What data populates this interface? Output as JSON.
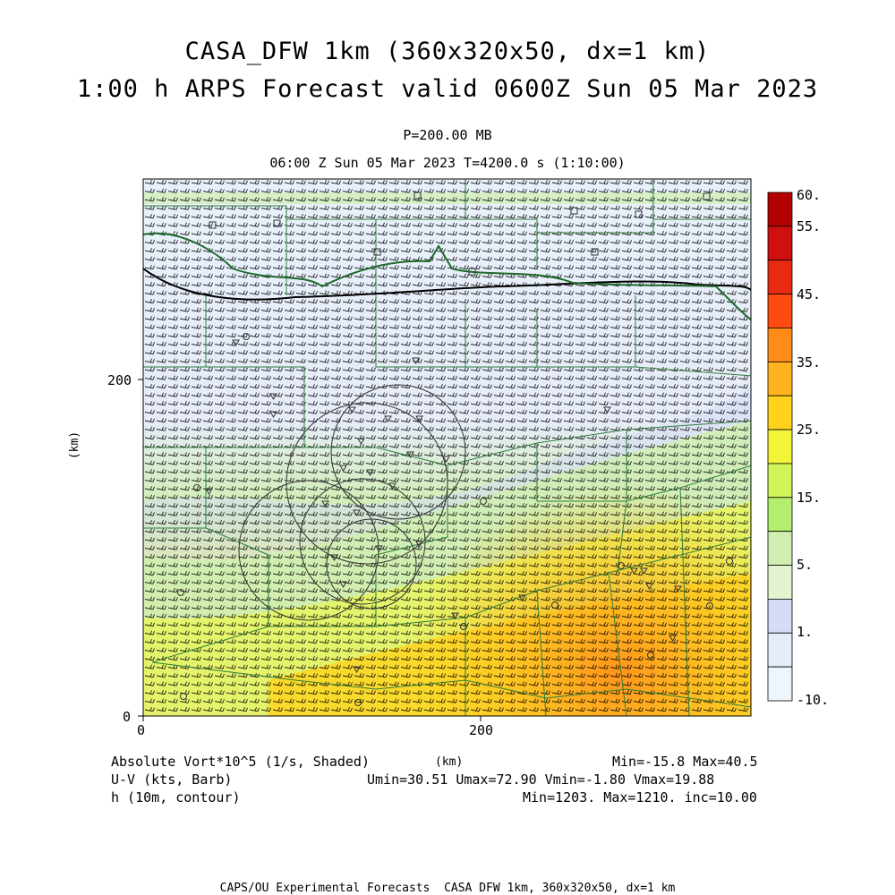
{
  "header": {
    "title_line1": "CASA_DFW 1km (360x320x50, dx=1 km)",
    "title_line2": "1:00 h ARPS Forecast valid 0600Z Sun 05 Mar 2023",
    "pressure_level": "P=200.00 MB",
    "time_line": "06:00 Z Sun 05 Mar 2023    T=4200.0 s (1:10:00)"
  },
  "axes": {
    "x_ticks": [
      "0",
      "200"
    ],
    "y_ticks": [
      "0",
      "200"
    ],
    "x_unit": "(km)",
    "y_unit": "(km)"
  },
  "colorbar": {
    "labels": [
      "60.",
      "55.",
      "45.",
      "35.",
      "25.",
      "15.",
      "5.",
      "1.",
      "-10."
    ],
    "colors": [
      "#b30000",
      "#d01010",
      "#e82a10",
      "#ff4a10",
      "#ff8c19",
      "#ffb31e",
      "#ffd21e",
      "#f3f53a",
      "#cff55a",
      "#b4ee6e",
      "#cfeeb0",
      "#e2f3ce",
      "#d6dcf5",
      "#e3eefa",
      "#eef6fc"
    ]
  },
  "footer": {
    "field1": "Absolute Vort*10^5 (1/s, Shaded)",
    "field1_minmax": "Min=-15.8 Max=40.5",
    "field2": "U-V (kts, Barb)",
    "field2_stats": "Umin=30.51 Umax=72.90 Vmin=-1.80 Vmax=19.88",
    "field3": "h (10m, contour)",
    "field3_stats": "Min=1203. Max=1210. inc=10.00",
    "credit": "CAPS/OU Experimental Forecasts  CASA DFW 1km, 360x320x50, dx=1 km"
  }
}
